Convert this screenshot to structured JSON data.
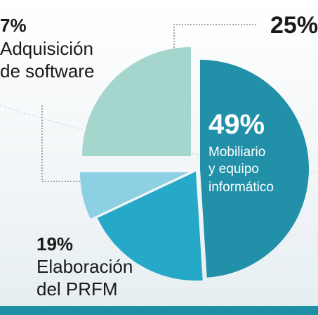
{
  "chart_data": {
    "type": "pie",
    "categories": [
      [
        "Mobiliario",
        "y equipo",
        "informático"
      ],
      [
        "Elaboración",
        "del PRFM"
      ],
      [
        "Adquisición",
        "de software"
      ],
      []
    ],
    "values": [
      49,
      19,
      7,
      25
    ],
    "value_labels": [
      "49%",
      "19%",
      "7%",
      "25%"
    ],
    "colors": [
      "#2190a8",
      "#26a8c8",
      "#8ed0e3",
      "#a5d6cd"
    ]
  }
}
